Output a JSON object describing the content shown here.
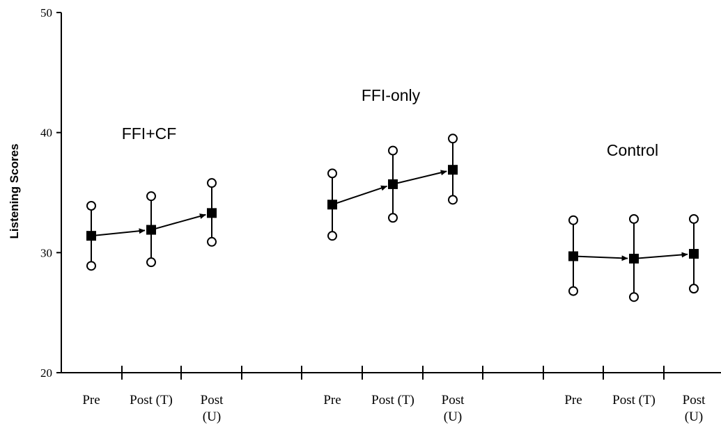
{
  "chart_data": {
    "type": "scatter",
    "ylabel": "Listening Scores",
    "ylim": [
      20,
      50
    ],
    "yticks": [
      20,
      30,
      40,
      50
    ],
    "groups": [
      {
        "name": "FFI+CF",
        "points": [
          {
            "label": "Pre",
            "mean": 31.4,
            "high": 33.9,
            "low": 28.9
          },
          {
            "label": "Post (T)",
            "mean": 31.9,
            "high": 34.7,
            "low": 29.2
          },
          {
            "label": "Post\n(U)",
            "mean": 33.3,
            "high": 35.8,
            "low": 30.9
          }
        ]
      },
      {
        "name": "FFI-only",
        "points": [
          {
            "label": "Pre",
            "mean": 34.0,
            "high": 36.6,
            "low": 31.4
          },
          {
            "label": "Post (T)",
            "mean": 35.7,
            "high": 38.5,
            "low": 32.9
          },
          {
            "label": "Post\n(U)",
            "mean": 36.9,
            "high": 39.5,
            "low": 34.4
          }
        ]
      },
      {
        "name": "Control",
        "points": [
          {
            "label": "Pre",
            "mean": 29.7,
            "high": 32.7,
            "low": 26.8
          },
          {
            "label": "Post (T)",
            "mean": 29.5,
            "high": 32.8,
            "low": 26.3
          },
          {
            "label": "Post\n(U)",
            "mean": 29.9,
            "high": 32.8,
            "low": 27.0
          }
        ]
      }
    ]
  }
}
